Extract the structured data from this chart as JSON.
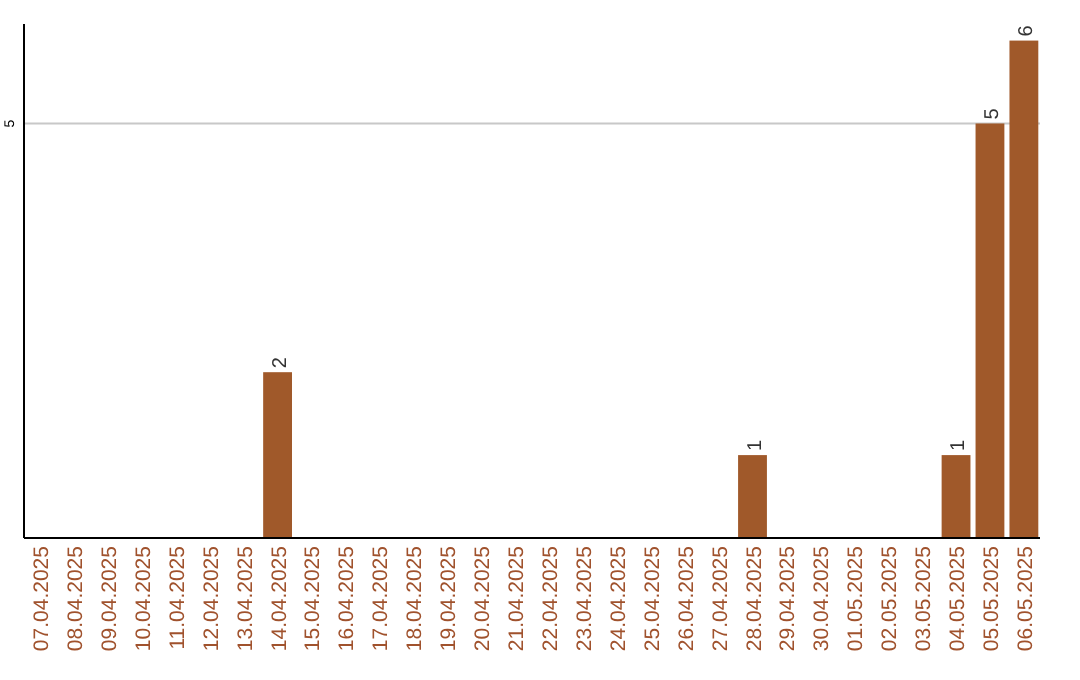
{
  "chart_data": {
    "type": "bar",
    "categories": [
      "07.04.2025",
      "08.04.2025",
      "09.04.2025",
      "10.04.2025",
      "11.04.2025",
      "12.04.2025",
      "13.04.2025",
      "14.04.2025",
      "15.04.2025",
      "16.04.2025",
      "17.04.2025",
      "18.04.2025",
      "19.04.2025",
      "20.04.2025",
      "21.04.2025",
      "22.04.2025",
      "23.04.2025",
      "24.04.2025",
      "25.04.2025",
      "26.04.2025",
      "27.04.2025",
      "28.04.2025",
      "29.04.2025",
      "30.04.2025",
      "01.05.2025",
      "02.05.2025",
      "03.05.2025",
      "04.05.2025",
      "05.05.2025",
      "06.05.2025"
    ],
    "values": [
      0,
      0,
      0,
      0,
      0,
      0,
      0,
      2,
      0,
      0,
      0,
      0,
      0,
      0,
      0,
      0,
      0,
      0,
      0,
      0,
      0,
      1,
      0,
      0,
      0,
      0,
      0,
      1,
      5,
      6
    ],
    "value_labels": [
      null,
      null,
      null,
      null,
      null,
      null,
      null,
      "2",
      null,
      null,
      null,
      null,
      null,
      null,
      null,
      null,
      null,
      null,
      null,
      null,
      null,
      "1",
      null,
      null,
      null,
      null,
      null,
      "1",
      "5",
      "6"
    ],
    "color": "#a0592a",
    "ylim": [
      0,
      6.2
    ],
    "yticks": [
      5
    ],
    "grid": "y"
  }
}
